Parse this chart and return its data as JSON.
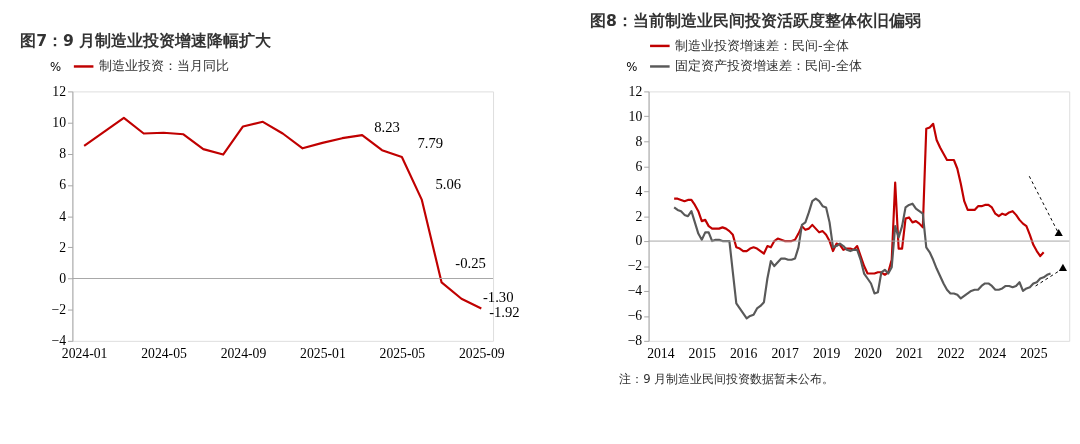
{
  "chart_data": [
    {
      "type": "line",
      "title": "图7：9 月制造业投资增速降幅扩大",
      "ylabel": "%",
      "categories": [
        "2024-01",
        null,
        null,
        null,
        "2024-05",
        null,
        null,
        null,
        "2024-09",
        null,
        null,
        null,
        "2025-01",
        null,
        null,
        null,
        "2025-05",
        null,
        null,
        null,
        "2025-09"
      ],
      "series": [
        {
          "name": "制造业投资：当月同比",
          "color": "#c00000",
          "values": [
            8.5,
            9.4,
            10.3,
            9.3,
            9.35,
            9.25,
            8.3,
            7.95,
            9.75,
            10.05,
            9.3,
            8.35,
            8.7,
            9.0,
            9.2,
            8.23,
            7.79,
            5.06,
            -0.25,
            -1.3,
            -1.92
          ],
          "value_labels": [
            null,
            null,
            null,
            null,
            null,
            null,
            null,
            null,
            null,
            null,
            null,
            null,
            null,
            null,
            null,
            "8.23",
            "7.79",
            "5.06",
            "-0.25",
            "-1.30",
            "-1.92"
          ]
        }
      ],
      "ylim": [
        -4,
        12
      ],
      "yticks": [
        -4,
        -2,
        0,
        2,
        4,
        6,
        8,
        10,
        12
      ],
      "ref_lines": [
        {
          "axis": "y",
          "value": 0,
          "color": "#a6a6a6"
        }
      ],
      "legend": "top",
      "grid": false
    },
    {
      "type": "line",
      "title": "图8：当前制造业民间投资活跃度整体依旧偏弱",
      "ylabel": "%",
      "categories": [
        "2014",
        null,
        null,
        null,
        null,
        null,
        null,
        null,
        null,
        null,
        null,
        null,
        "2015",
        null,
        null,
        null,
        null,
        null,
        null,
        null,
        null,
        null,
        null,
        null,
        "2016",
        null,
        null,
        null,
        null,
        null,
        null,
        null,
        null,
        null,
        null,
        null,
        "2017",
        null,
        null,
        null,
        null,
        null,
        null,
        null,
        null,
        null,
        null,
        null,
        "2019",
        null,
        null,
        null,
        null,
        null,
        null,
        null,
        null,
        null,
        null,
        null,
        "2020",
        null,
        null,
        null,
        null,
        null,
        null,
        null,
        null,
        null,
        null,
        null,
        "2021",
        null,
        null,
        null,
        null,
        null,
        null,
        null,
        null,
        null,
        null,
        null,
        "2022",
        null,
        null,
        null,
        null,
        null,
        null,
        null,
        null,
        null,
        null,
        null,
        "2024",
        null,
        null,
        null,
        null,
        null,
        null,
        null,
        null,
        null,
        null,
        null,
        "2025",
        null,
        null,
        null,
        null,
        null,
        null,
        null
      ],
      "series": [
        {
          "name": "制造业投资增速差：民间-全体",
          "color": "#c00000",
          "values": [
            null,
            null,
            null,
            null,
            3.4,
            3.4,
            3.3,
            3.2,
            3.3,
            3.3,
            2.9,
            2.4,
            1.6,
            1.7,
            1.2,
            1.0,
            1.0,
            1.0,
            1.1,
            1.0,
            0.8,
            0.5,
            -0.5,
            -0.6,
            -0.8,
            -0.8,
            -0.6,
            -0.5,
            -0.6,
            -0.8,
            -1.0,
            -0.4,
            -0.5,
            0.0,
            0.2,
            0.1,
            0.0,
            0.0,
            0.0,
            0.1,
            0.6,
            1.2,
            0.9,
            1.0,
            1.3,
            1.0,
            0.7,
            0.8,
            0.5,
            0.0,
            -0.8,
            -0.2,
            -0.3,
            -0.7,
            -0.6,
            -0.6,
            -0.7,
            -0.4,
            -1.2,
            -2.0,
            -2.6,
            -2.6,
            -2.6,
            -2.5,
            -2.5,
            -2.7,
            -2.5,
            -1.5,
            4.7,
            -0.6,
            -0.6,
            1.8,
            1.9,
            1.5,
            1.6,
            1.4,
            1.1,
            9.0,
            9.1,
            9.4,
            8.1,
            7.5,
            7.0,
            6.5,
            6.5,
            6.5,
            5.8,
            4.6,
            3.2,
            2.5,
            2.5,
            2.5,
            2.8,
            2.8,
            2.9,
            2.9,
            2.7,
            2.2,
            2.0,
            2.2,
            2.1,
            2.3,
            2.4,
            2.1,
            1.7,
            1.4,
            1.2,
            0.5,
            -0.3,
            -0.8,
            -1.2,
            -0.9,
            null,
            null,
            null,
            null
          ]
        },
        {
          "name": "固定资产投资增速差：民间-全体",
          "color": "#595959",
          "values": [
            null,
            null,
            null,
            null,
            2.7,
            2.5,
            2.4,
            2.1,
            2.0,
            2.4,
            1.5,
            0.6,
            0.1,
            0.7,
            0.7,
            0.0,
            0.1,
            0.1,
            0.0,
            0.0,
            0.0,
            -2.5,
            -5.0,
            -5.4,
            -5.8,
            -6.2,
            -6.0,
            -5.9,
            -5.4,
            -5.2,
            -4.9,
            -3.0,
            -1.6,
            -2.0,
            -1.7,
            -1.4,
            -1.4,
            -1.5,
            -1.5,
            -1.4,
            -0.5,
            1.3,
            1.5,
            2.3,
            3.2,
            3.4,
            3.2,
            2.8,
            2.7,
            1.5,
            -0.5,
            -0.4,
            -0.2,
            -0.4,
            -0.7,
            -0.8,
            -0.7,
            -0.7,
            -1.5,
            -2.6,
            -3.0,
            -3.4,
            -4.2,
            -4.1,
            -2.5,
            -2.3,
            -2.6,
            -2.1,
            1.2,
            0.3,
            1.2,
            2.7,
            2.9,
            3.0,
            2.6,
            2.4,
            2.2,
            -0.5,
            -0.9,
            -1.5,
            -2.2,
            -2.8,
            -3.4,
            -3.9,
            -4.2,
            -4.2,
            -4.3,
            -4.6,
            -4.4,
            -4.2,
            -4.0,
            -3.9,
            -3.9,
            -3.6,
            -3.4,
            -3.4,
            -3.6,
            -3.9,
            -3.9,
            -3.8,
            -3.6,
            -3.6,
            -3.7,
            -3.6,
            -3.3,
            -4.0,
            -3.8,
            -3.7,
            -3.4,
            -3.3,
            -3.0,
            -2.9,
            -2.7,
            -2.6,
            null,
            null
          ]
        }
      ],
      "ylim": [
        -8,
        12
      ],
      "yticks": [
        -8,
        -6,
        -4,
        -2,
        0,
        2,
        4,
        6,
        8,
        10,
        12
      ],
      "ref_lines": [
        {
          "axis": "y",
          "value": 0,
          "color": "#a6a6a6"
        }
      ],
      "legend": "top",
      "grid": false,
      "annotations": [
        "注：9 月制造业民间投资数据暂未公布。"
      ]
    }
  ]
}
